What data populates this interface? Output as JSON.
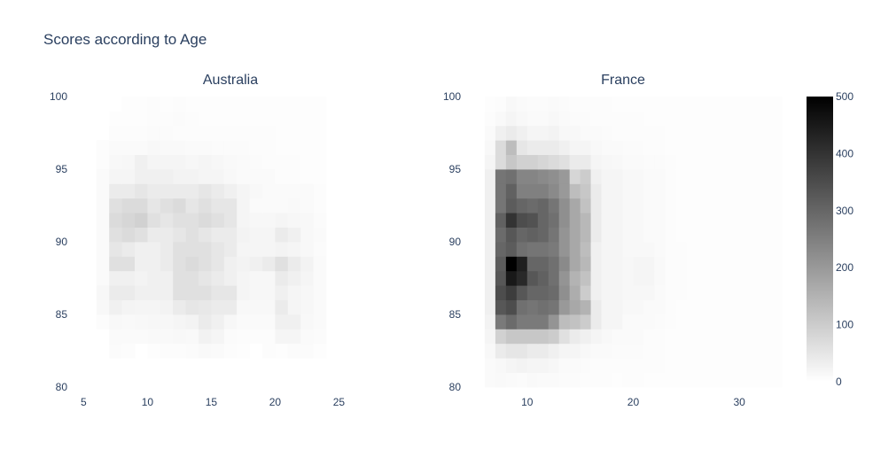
{
  "chart_data": {
    "type": "heatmap",
    "title": "Scores according to Age",
    "colorscale": [
      "#ffffff",
      "#000000"
    ],
    "colorbar": {
      "min": 0,
      "max": 500,
      "ticks": [
        "0",
        "100",
        "200",
        "300",
        "400",
        "500"
      ]
    },
    "subplots": [
      {
        "name": "Australia",
        "xlim": [
          4,
          29
        ],
        "ylim": [
          80,
          100
        ],
        "xticks": [
          "5",
          "10",
          "15",
          "20",
          "25"
        ],
        "xtick_values": [
          5,
          10,
          15,
          20,
          25
        ],
        "yticks": [
          "80",
          "85",
          "90",
          "95",
          "100"
        ],
        "ytick_values": [
          80,
          85,
          90,
          95,
          100
        ],
        "x_bin_start": 4,
        "x_bin_size": 1,
        "y_bin_start": 80,
        "y_bin_size": 1,
        "z": [
          [
            0,
            0,
            0,
            0,
            0,
            0,
            0,
            0,
            0,
            0,
            0,
            0,
            0,
            0,
            0,
            0,
            0,
            0,
            0,
            0,
            0,
            0,
            0,
            0,
            0
          ],
          [
            0,
            0,
            0,
            0,
            0,
            0,
            0,
            0,
            0,
            0,
            0,
            0,
            0,
            0,
            0,
            0,
            0,
            0,
            0,
            0,
            0,
            0,
            0,
            0,
            0
          ],
          [
            0,
            0,
            0,
            8,
            6,
            0,
            4,
            5,
            6,
            7,
            12,
            10,
            6,
            4,
            0,
            5,
            4,
            8,
            7,
            4,
            0,
            0,
            0,
            0,
            0
          ],
          [
            0,
            0,
            0,
            10,
            10,
            10,
            12,
            12,
            14,
            12,
            25,
            20,
            8,
            6,
            6,
            6,
            20,
            20,
            10,
            8,
            0,
            0,
            0,
            0,
            0
          ],
          [
            0,
            0,
            6,
            14,
            12,
            14,
            16,
            16,
            20,
            24,
            40,
            30,
            16,
            10,
            10,
            10,
            30,
            30,
            14,
            10,
            0,
            0,
            0,
            0,
            0
          ],
          [
            0,
            0,
            14,
            30,
            22,
            20,
            20,
            24,
            40,
            50,
            45,
            40,
            40,
            14,
            14,
            14,
            40,
            20,
            16,
            10,
            0,
            0,
            0,
            0,
            0
          ],
          [
            0,
            0,
            16,
            40,
            40,
            30,
            30,
            30,
            60,
            60,
            60,
            50,
            50,
            20,
            16,
            16,
            30,
            20,
            16,
            10,
            0,
            0,
            0,
            0,
            0
          ],
          [
            0,
            0,
            10,
            30,
            30,
            24,
            30,
            30,
            60,
            60,
            50,
            40,
            30,
            20,
            16,
            16,
            40,
            30,
            20,
            10,
            0,
            0,
            0,
            0,
            0
          ],
          [
            0,
            0,
            10,
            60,
            60,
            30,
            30,
            40,
            60,
            70,
            60,
            50,
            30,
            24,
            30,
            40,
            60,
            40,
            24,
            10,
            0,
            0,
            0,
            0,
            0
          ],
          [
            0,
            0,
            10,
            50,
            40,
            30,
            30,
            40,
            60,
            60,
            60,
            50,
            40,
            20,
            20,
            20,
            24,
            20,
            14,
            8,
            0,
            0,
            0,
            0,
            0
          ],
          [
            0,
            0,
            10,
            60,
            70,
            60,
            40,
            40,
            50,
            60,
            50,
            40,
            40,
            24,
            20,
            20,
            40,
            30,
            14,
            10,
            0,
            0,
            0,
            0,
            0
          ],
          [
            0,
            0,
            10,
            70,
            80,
            90,
            60,
            50,
            60,
            60,
            70,
            60,
            50,
            20,
            16,
            16,
            20,
            16,
            14,
            8,
            0,
            0,
            0,
            0,
            0
          ],
          [
            0,
            0,
            10,
            60,
            70,
            70,
            50,
            60,
            70,
            50,
            60,
            50,
            50,
            20,
            10,
            10,
            10,
            12,
            10,
            6,
            0,
            0,
            0,
            0,
            0
          ],
          [
            0,
            0,
            10,
            40,
            40,
            50,
            40,
            40,
            40,
            40,
            50,
            40,
            30,
            20,
            14,
            10,
            10,
            10,
            10,
            6,
            0,
            0,
            0,
            0,
            0
          ],
          [
            0,
            0,
            10,
            20,
            20,
            30,
            30,
            30,
            24,
            24,
            20,
            20,
            14,
            10,
            10,
            10,
            6,
            6,
            4,
            4,
            0,
            0,
            0,
            0,
            0
          ],
          [
            0,
            0,
            6,
            14,
            16,
            30,
            20,
            20,
            20,
            16,
            20,
            16,
            12,
            10,
            8,
            6,
            6,
            6,
            4,
            4,
            0,
            0,
            0,
            0,
            0
          ],
          [
            0,
            0,
            6,
            10,
            10,
            10,
            14,
            12,
            12,
            10,
            10,
            8,
            8,
            8,
            6,
            6,
            4,
            4,
            4,
            4,
            0,
            0,
            0,
            0,
            0
          ],
          [
            0,
            0,
            0,
            6,
            6,
            6,
            8,
            8,
            6,
            6,
            6,
            6,
            6,
            6,
            6,
            6,
            4,
            4,
            4,
            4,
            0,
            0,
            0,
            0,
            0
          ],
          [
            0,
            0,
            0,
            4,
            4,
            4,
            6,
            6,
            8,
            6,
            4,
            4,
            4,
            4,
            4,
            4,
            4,
            4,
            4,
            4,
            0,
            0,
            0,
            0,
            0
          ],
          [
            0,
            0,
            0,
            0,
            4,
            4,
            6,
            4,
            6,
            4,
            4,
            4,
            4,
            4,
            4,
            4,
            4,
            4,
            4,
            4,
            0,
            0,
            0,
            0,
            0
          ]
        ]
      },
      {
        "name": "France",
        "xlim": [
          4,
          34
        ],
        "ylim": [
          80,
          100
        ],
        "xticks": [
          "10",
          "20",
          "30"
        ],
        "xtick_values": [
          10,
          20,
          30
        ],
        "yticks": [
          "80",
          "85",
          "90",
          "95",
          "100"
        ],
        "ytick_values": [
          80,
          85,
          90,
          95,
          100
        ],
        "x_bin_start": 4,
        "x_bin_size": 1,
        "y_bin_start": 80,
        "y_bin_size": 1,
        "z": [
          [
            0,
            0,
            10,
            12,
            10,
            8,
            12,
            10,
            10,
            8,
            8,
            6,
            6,
            6,
            4,
            6,
            6,
            4,
            4,
            4,
            4,
            4,
            4,
            4,
            4,
            4,
            4,
            4,
            4,
            4
          ],
          [
            0,
            0,
            10,
            14,
            20,
            24,
            20,
            20,
            16,
            10,
            10,
            8,
            6,
            6,
            6,
            6,
            6,
            6,
            6,
            4,
            4,
            4,
            4,
            4,
            4,
            4,
            4,
            4,
            4,
            4
          ],
          [
            0,
            0,
            14,
            40,
            50,
            50,
            40,
            40,
            30,
            20,
            20,
            14,
            10,
            10,
            8,
            8,
            8,
            6,
            6,
            4,
            4,
            4,
            4,
            4,
            4,
            4,
            4,
            4,
            4,
            4
          ],
          [
            0,
            0,
            20,
            90,
            110,
            110,
            110,
            110,
            100,
            60,
            40,
            30,
            20,
            14,
            10,
            10,
            10,
            6,
            6,
            4,
            4,
            4,
            4,
            4,
            4,
            4,
            4,
            4,
            4,
            4
          ],
          [
            0,
            0,
            24,
            260,
            290,
            260,
            260,
            260,
            210,
            130,
            120,
            100,
            40,
            20,
            20,
            10,
            10,
            10,
            8,
            6,
            4,
            4,
            4,
            4,
            4,
            4,
            4,
            4,
            4,
            4
          ],
          [
            0,
            0,
            30,
            330,
            350,
            280,
            270,
            280,
            270,
            200,
            170,
            150,
            40,
            20,
            20,
            14,
            14,
            10,
            10,
            6,
            4,
            4,
            4,
            4,
            4,
            4,
            4,
            4,
            4,
            4
          ],
          [
            0,
            0,
            30,
            350,
            380,
            330,
            300,
            300,
            290,
            220,
            160,
            100,
            30,
            20,
            20,
            16,
            16,
            16,
            10,
            6,
            6,
            4,
            4,
            4,
            4,
            4,
            4,
            4,
            4,
            4
          ],
          [
            0,
            0,
            30,
            330,
            450,
            420,
            330,
            310,
            280,
            210,
            150,
            120,
            30,
            20,
            20,
            16,
            20,
            20,
            12,
            6,
            6,
            4,
            4,
            4,
            4,
            4,
            4,
            4,
            4,
            4
          ],
          [
            0,
            0,
            30,
            320,
            500,
            440,
            300,
            300,
            280,
            230,
            170,
            140,
            30,
            20,
            20,
            16,
            20,
            20,
            12,
            6,
            6,
            4,
            4,
            4,
            4,
            4,
            4,
            4,
            4,
            4
          ],
          [
            0,
            0,
            30,
            300,
            320,
            280,
            270,
            270,
            260,
            210,
            170,
            130,
            30,
            20,
            20,
            14,
            14,
            14,
            10,
            6,
            6,
            4,
            4,
            4,
            4,
            4,
            4,
            4,
            4,
            4
          ],
          [
            0,
            0,
            30,
            290,
            330,
            300,
            310,
            300,
            270,
            210,
            170,
            140,
            40,
            20,
            20,
            14,
            14,
            10,
            10,
            6,
            4,
            4,
            4,
            4,
            4,
            4,
            4,
            4,
            4,
            4
          ],
          [
            0,
            0,
            30,
            310,
            400,
            350,
            340,
            300,
            280,
            220,
            170,
            140,
            40,
            20,
            20,
            14,
            14,
            10,
            10,
            6,
            4,
            4,
            4,
            4,
            4,
            4,
            4,
            4,
            4,
            4
          ],
          [
            0,
            0,
            30,
            270,
            320,
            300,
            290,
            300,
            270,
            220,
            170,
            120,
            40,
            20,
            20,
            14,
            14,
            10,
            10,
            6,
            4,
            4,
            4,
            4,
            4,
            4,
            4,
            4,
            4,
            4
          ],
          [
            0,
            0,
            30,
            270,
            310,
            250,
            250,
            250,
            230,
            200,
            130,
            110,
            40,
            20,
            20,
            14,
            14,
            10,
            10,
            6,
            4,
            4,
            4,
            4,
            4,
            4,
            4,
            4,
            4,
            4
          ],
          [
            0,
            0,
            30,
            270,
            280,
            240,
            240,
            230,
            220,
            200,
            80,
            100,
            30,
            20,
            20,
            14,
            14,
            10,
            10,
            6,
            4,
            4,
            4,
            4,
            4,
            4,
            4,
            4,
            4,
            4
          ],
          [
            0,
            0,
            20,
            70,
            110,
            90,
            90,
            80,
            70,
            60,
            40,
            40,
            20,
            16,
            14,
            10,
            10,
            8,
            8,
            6,
            4,
            4,
            4,
            4,
            4,
            4,
            4,
            4,
            4,
            4
          ],
          [
            0,
            0,
            14,
            70,
            130,
            50,
            40,
            40,
            40,
            30,
            20,
            20,
            14,
            10,
            10,
            8,
            8,
            6,
            6,
            4,
            4,
            4,
            4,
            4,
            4,
            4,
            4,
            4,
            4,
            4
          ],
          [
            0,
            0,
            10,
            30,
            40,
            30,
            20,
            20,
            24,
            14,
            14,
            10,
            10,
            8,
            6,
            6,
            6,
            6,
            6,
            4,
            4,
            4,
            4,
            4,
            4,
            4,
            4,
            4,
            4,
            4
          ],
          [
            0,
            0,
            6,
            12,
            20,
            14,
            10,
            10,
            14,
            10,
            8,
            8,
            6,
            6,
            6,
            6,
            6,
            4,
            4,
            4,
            4,
            4,
            4,
            4,
            4,
            4,
            4,
            4,
            4,
            4
          ],
          [
            0,
            0,
            4,
            6,
            14,
            10,
            8,
            8,
            10,
            8,
            6,
            6,
            6,
            6,
            4,
            4,
            4,
            4,
            4,
            4,
            4,
            4,
            4,
            4,
            4,
            4,
            4,
            4,
            4,
            4
          ]
        ]
      }
    ]
  }
}
